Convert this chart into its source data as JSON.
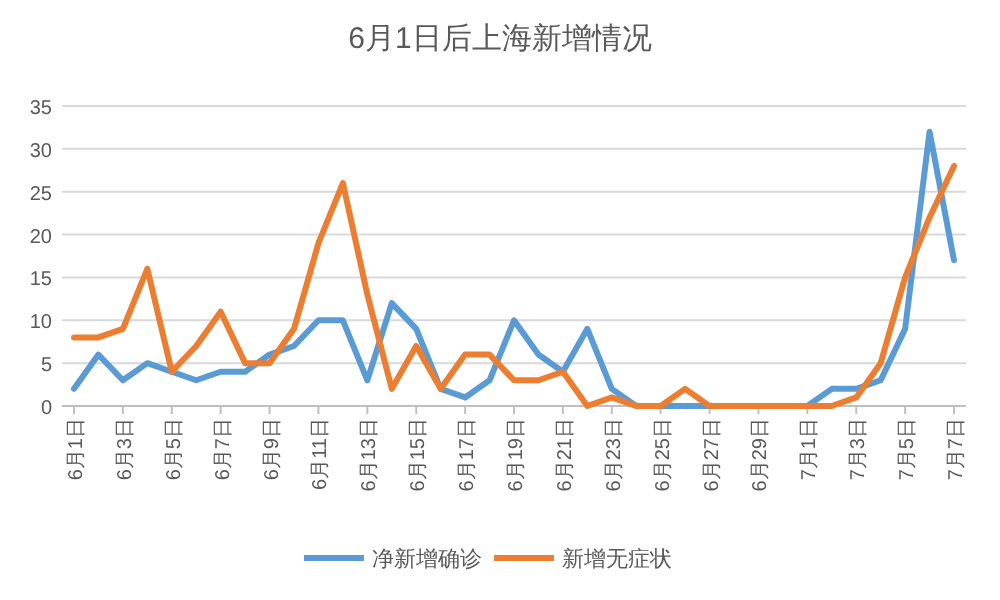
{
  "chart_data": {
    "type": "line",
    "title": "6月1日后上海新增情况",
    "categories": [
      "6月1日",
      null,
      "6月3日",
      null,
      "6月5日",
      null,
      "6月7日",
      null,
      "6月9日",
      null,
      "6月11日",
      null,
      "6月13日",
      null,
      "6月15日",
      null,
      "6月17日",
      null,
      "6月19日",
      null,
      "6月21日",
      null,
      "6月23日",
      null,
      "6月25日",
      null,
      "6月27日",
      null,
      "6月29日",
      null,
      "7月1日",
      null,
      "7月3日",
      null,
      "7月5日",
      null,
      "7月7日"
    ],
    "series": [
      {
        "name": "净新增确诊",
        "color": "#5b9bd5",
        "values": [
          2,
          6,
          3,
          5,
          4,
          3,
          4,
          4,
          6,
          7,
          10,
          10,
          3,
          12,
          9,
          2,
          1,
          3,
          10,
          6,
          4,
          9,
          2,
          0,
          0,
          0,
          0,
          0,
          0,
          0,
          0,
          2,
          2,
          3,
          9,
          32,
          17
        ]
      },
      {
        "name": "新增无症状",
        "color": "#ed7d31",
        "values": [
          8,
          8,
          9,
          16,
          4,
          7,
          11,
          5,
          5,
          9,
          19,
          26,
          13,
          2,
          7,
          2,
          6,
          6,
          3,
          3,
          4,
          0,
          1,
          0,
          0,
          2,
          0,
          0,
          0,
          0,
          0,
          0,
          1,
          5,
          15,
          22,
          28
        ]
      }
    ],
    "ylim": [
      0,
      35
    ],
    "yticks": [
      0,
      5,
      10,
      15,
      20,
      25,
      30,
      35
    ],
    "grid": "y",
    "legend": "bottom"
  }
}
